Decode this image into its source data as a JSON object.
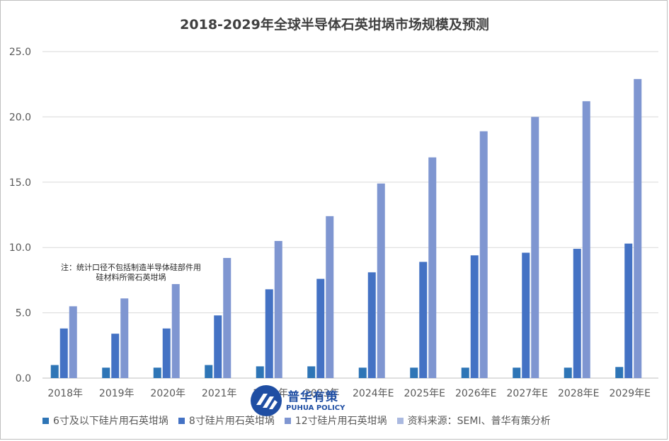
{
  "chart_data": {
    "type": "bar",
    "title": "2018-2029年全球半导体石英坩埚市场规模及预测",
    "categories": [
      "2018年",
      "2019年",
      "2020年",
      "2021年",
      "2022年",
      "2023年",
      "2024年E",
      "2025年E",
      "2026年E",
      "2027年E",
      "2028年E",
      "2029年E"
    ],
    "series": [
      {
        "name": "6寸及以下硅片用石英坩埚",
        "color": "#2e75b6",
        "values": [
          1.0,
          0.8,
          0.8,
          1.0,
          0.9,
          0.9,
          0.8,
          0.8,
          0.8,
          0.8,
          0.8,
          0.85
        ]
      },
      {
        "name": "8寸硅片用石英坩埚",
        "color": "#4472c4",
        "values": [
          3.8,
          3.4,
          3.8,
          4.8,
          6.8,
          7.6,
          8.1,
          8.9,
          9.4,
          9.6,
          9.9,
          10.3
        ]
      },
      {
        "name": "12寸硅片用石英坩埚",
        "color": "#7f96d1",
        "values": [
          5.5,
          6.1,
          7.2,
          9.2,
          10.5,
          12.4,
          14.9,
          16.9,
          18.9,
          20.0,
          21.2,
          22.9
        ]
      }
    ],
    "ylim": [
      0,
      25
    ],
    "yticks": [
      "0.0",
      "5.0",
      "10.0",
      "15.0",
      "20.0",
      "25.0"
    ],
    "ytick_values": [
      0,
      5,
      10,
      15,
      20,
      25
    ],
    "grid": true,
    "legend_position": "bottom"
  },
  "source_legend": {
    "label": "资料来源：SEMI、普华有策分析",
    "color": "#aab9e0"
  },
  "note": {
    "line1": "注：统计口径不包括制造半导体硅部件用",
    "line2": "硅材料所需石英坩埚"
  },
  "logo": {
    "name": "普华有策",
    "subtitle": "PUHUA POLICY",
    "icon": "puhua-logo-icon"
  }
}
